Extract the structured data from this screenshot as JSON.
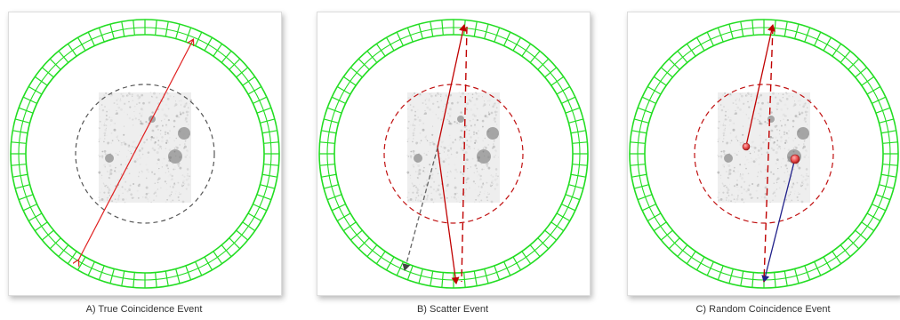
{
  "colors": {
    "detector": "#22dd22",
    "true_line": "#e02020",
    "scatter_line": "#c00000",
    "dashed_circle_true": "#555555",
    "dashed_circle_other": "#c01010",
    "scatter_deflected": "#666666",
    "random_second": "#20208a",
    "annihilation_point": "#e84a4a"
  },
  "panels": [
    {
      "id": "true",
      "caption": "A) True Coincidence Event",
      "circle_style": "gray",
      "events": [
        "straight-line-of-response"
      ]
    },
    {
      "id": "scatter",
      "caption": "B) Scatter Event",
      "circle_style": "red",
      "events": [
        "original-path",
        "scattered-path",
        "incorrect-line-of-response"
      ]
    },
    {
      "id": "random",
      "caption": "C) Random Coincidence Event",
      "circle_style": "red",
      "events": [
        "annihilation-1",
        "annihilation-2",
        "incorrect-line-of-response"
      ]
    }
  ]
}
